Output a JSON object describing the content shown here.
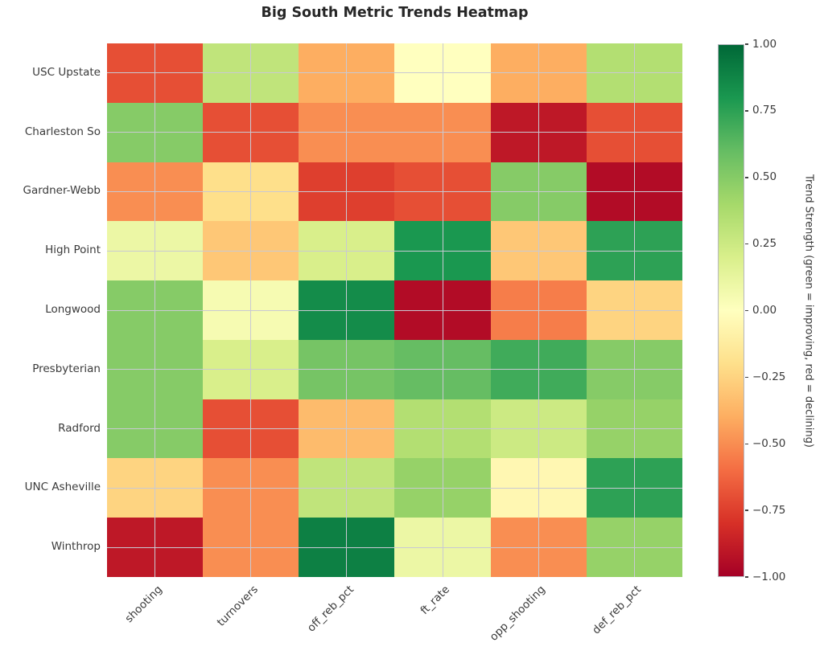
{
  "title": "Big South Metric Trends Heatmap",
  "chart_data": {
    "type": "heatmap",
    "rows": [
      "USC Upstate",
      "Charleston So",
      "Gardner-Webb",
      "High Point",
      "Longwood",
      "Presbyterian",
      "Radford",
      "UNC Asheville",
      "Winthrop"
    ],
    "columns": [
      "shooting",
      "turnovers",
      "off_reb_pct",
      "ft_rate",
      "opp_shooting",
      "def_reb_pct"
    ],
    "values": [
      [
        -0.7,
        0.3,
        -0.4,
        0.0,
        -0.4,
        0.35
      ],
      [
        0.5,
        -0.7,
        -0.5,
        -0.5,
        -0.9,
        -0.7
      ],
      [
        -0.5,
        -0.2,
        -0.75,
        -0.7,
        0.5,
        -0.95
      ],
      [
        0.1,
        -0.3,
        0.2,
        0.8,
        -0.3,
        0.75
      ],
      [
        0.5,
        0.05,
        0.85,
        -0.95,
        -0.55,
        -0.25
      ],
      [
        0.5,
        0.2,
        0.55,
        0.6,
        0.7,
        0.5
      ],
      [
        0.5,
        -0.7,
        -0.35,
        0.35,
        0.25,
        0.45
      ],
      [
        -0.25,
        -0.5,
        0.3,
        0.45,
        -0.05,
        0.75
      ],
      [
        -0.9,
        -0.5,
        0.9,
        0.1,
        -0.5,
        0.45
      ]
    ],
    "vmin": -1.0,
    "vmax": 1.0,
    "colormap": "RdYlGn",
    "colormap_stops": [
      {
        "v": -1.0,
        "c": "#a50026"
      },
      {
        "v": -0.8,
        "c": "#d73027"
      },
      {
        "v": -0.6,
        "c": "#f46d43"
      },
      {
        "v": -0.4,
        "c": "#fdae61"
      },
      {
        "v": -0.2,
        "c": "#fee08b"
      },
      {
        "v": 0.0,
        "c": "#ffffbf"
      },
      {
        "v": 0.2,
        "c": "#d9ef8b"
      },
      {
        "v": 0.4,
        "c": "#a6d96a"
      },
      {
        "v": 0.6,
        "c": "#66bd63"
      },
      {
        "v": 0.8,
        "c": "#1a9850"
      },
      {
        "v": 1.0,
        "c": "#006837"
      }
    ],
    "gridline_color": "#c9c9d3",
    "colorbar": {
      "label": "Trend Strength (green = improving, red = declining)",
      "ticks": [
        {
          "v": 1.0,
          "label": "1.00"
        },
        {
          "v": 0.75,
          "label": "0.75"
        },
        {
          "v": 0.5,
          "label": "0.50"
        },
        {
          "v": 0.25,
          "label": "0.25"
        },
        {
          "v": 0.0,
          "label": "0.00"
        },
        {
          "v": -0.25,
          "label": "−0.25"
        },
        {
          "v": -0.5,
          "label": "−0.50"
        },
        {
          "v": -0.75,
          "label": "−0.75"
        },
        {
          "v": -1.0,
          "label": "−1.00"
        }
      ]
    }
  }
}
